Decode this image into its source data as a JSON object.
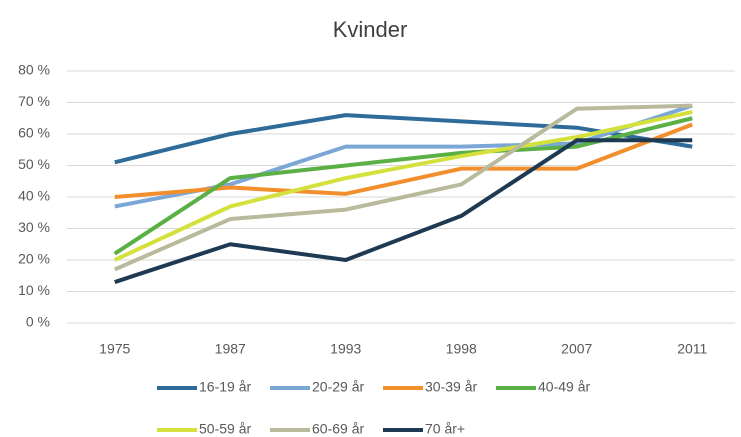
{
  "chart_data": {
    "type": "line",
    "title": "Kvinder",
    "categories": [
      "1975",
      "1987",
      "1993",
      "1998",
      "2007",
      "2011"
    ],
    "series": [
      {
        "name": "16-19 år",
        "color": "#2e6b99",
        "values": [
          51,
          60,
          66,
          64,
          62,
          56
        ]
      },
      {
        "name": "20-29 år",
        "color": "#7ba7d6",
        "values": [
          37,
          44,
          56,
          56,
          57,
          69
        ]
      },
      {
        "name": "30-39 år",
        "color": "#f28e2b",
        "values": [
          40,
          43,
          41,
          49,
          49,
          63
        ]
      },
      {
        "name": "40-49 år",
        "color": "#5aaf45",
        "values": [
          22,
          46,
          50,
          54,
          56,
          65
        ]
      },
      {
        "name": "50-59 år",
        "color": "#d4e03c",
        "values": [
          20,
          37,
          46,
          53,
          59,
          67
        ]
      },
      {
        "name": "60-69 år",
        "color": "#b9b99b",
        "values": [
          17,
          33,
          36,
          44,
          68,
          69
        ]
      },
      {
        "name": "70 år+",
        "color": "#1d3a52",
        "values": [
          13,
          25,
          20,
          34,
          58,
          58
        ]
      }
    ],
    "ylim": [
      0,
      80
    ],
    "yticks": [
      {
        "value": 0,
        "label": "0 %"
      },
      {
        "value": 10,
        "label": "10 %"
      },
      {
        "value": 20,
        "label": "20 %"
      },
      {
        "value": 30,
        "label": "30 %"
      },
      {
        "value": 40,
        "label": "40 %"
      },
      {
        "value": 50,
        "label": "50 %"
      },
      {
        "value": 60,
        "label": "60 %"
      },
      {
        "value": 70,
        "label": "70 %"
      },
      {
        "value": 80,
        "label": "80 %"
      }
    ],
    "grid": true,
    "legend": "bottom"
  }
}
